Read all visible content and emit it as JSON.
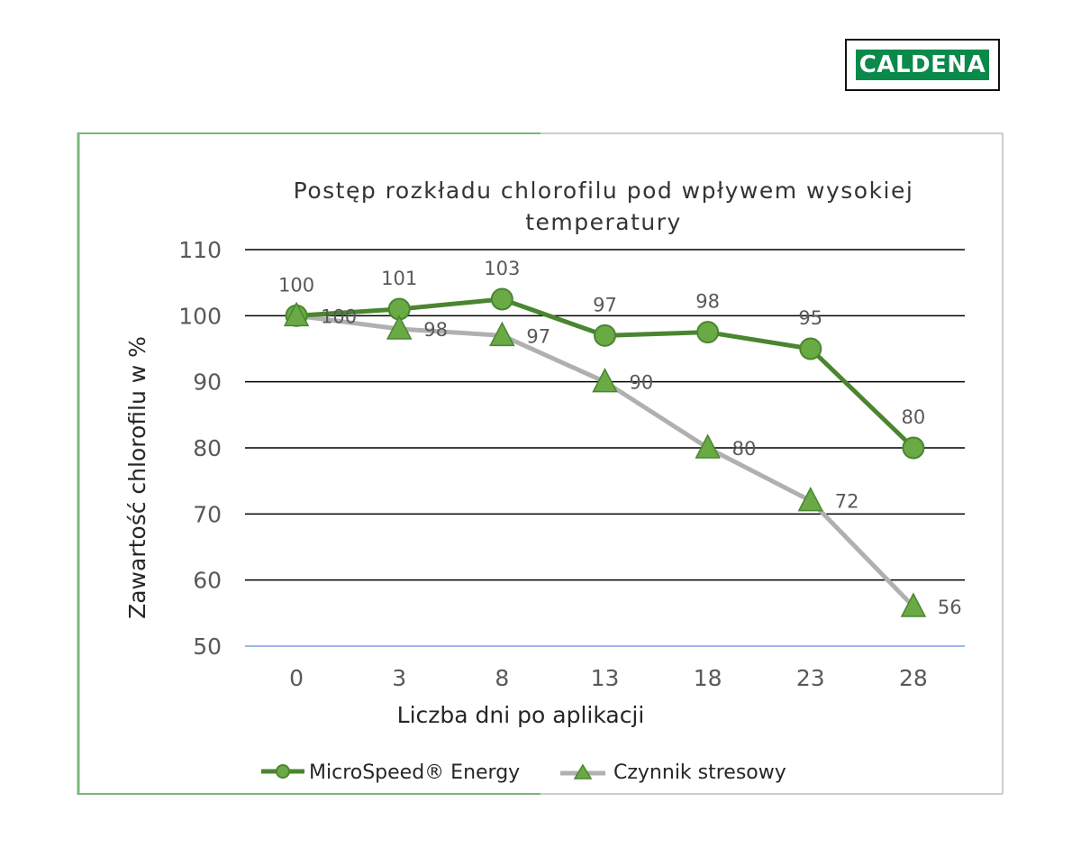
{
  "logo": {
    "text": "CALDENA",
    "color": "#0a8a4a"
  },
  "colors": {
    "frame_left": "#7bb77d",
    "frame_right": "#cccccc",
    "gridline": "#000000",
    "baseline": "#7f9fe0",
    "series1_line": "#4a8530",
    "marker_fill": "#6aaa45",
    "marker_stroke": "#4a8530",
    "series2_line": "#b0b0b0"
  },
  "chart_data": {
    "type": "line",
    "title": "Postęp rozkładu chlorofilu pod wpływem wysokiej temperatury",
    "title_lines": [
      "Postęp rozkładu chlorofilu pod wpływem wysokiej",
      "temperatury"
    ],
    "xlabel": "Liczba dni po aplikacji",
    "ylabel": "Zawartość chlorofilu w %",
    "categories": [
      "0",
      "3",
      "8",
      "13",
      "18",
      "23",
      "28"
    ],
    "ylim": [
      50,
      110
    ],
    "yticks": [
      50,
      60,
      70,
      80,
      90,
      100,
      110
    ],
    "grid": true,
    "legend": "bottom",
    "series": [
      {
        "name": "MicroSpeed® Energy",
        "marker": "circle",
        "values": [
          100,
          101,
          102.5,
          97,
          97.5,
          95,
          80
        ],
        "labels": [
          "100",
          "101",
          "103",
          "97",
          "98",
          "95",
          "80"
        ]
      },
      {
        "name": "Czynnik stresowy",
        "marker": "triangle",
        "values": [
          100,
          98,
          97,
          90,
          80,
          72,
          56
        ],
        "labels": [
          "100",
          "98",
          "97",
          "90",
          "80",
          "72",
          "56"
        ]
      }
    ]
  }
}
